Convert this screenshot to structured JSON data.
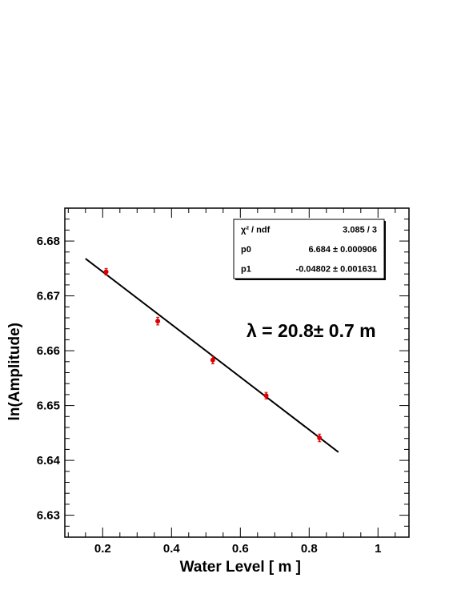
{
  "chart_data": {
    "type": "scatter",
    "xlabel": "Water Level [ m ]",
    "ylabel": "ln(Amplitude)",
    "xlim": [
      0.09,
      1.09
    ],
    "ylim": [
      6.626,
      6.686
    ],
    "x_ticks": [
      0.2,
      0.4,
      0.6,
      0.8,
      1.0
    ],
    "x_tick_labels": [
      "0.2",
      "0.4",
      "0.6",
      "0.8",
      "1"
    ],
    "y_ticks": [
      6.63,
      6.64,
      6.65,
      6.66,
      6.67,
      6.68
    ],
    "y_tick_labels": [
      "6.63",
      "6.64",
      "6.65",
      "6.66",
      "6.67",
      "6.68"
    ],
    "grid": false,
    "points": [
      {
        "x": 0.21,
        "y": 6.6744,
        "err": 0.0006
      },
      {
        "x": 0.36,
        "y": 6.6654,
        "err": 0.0007
      },
      {
        "x": 0.52,
        "y": 6.6583,
        "err": 0.0007
      },
      {
        "x": 0.675,
        "y": 6.6518,
        "err": 0.0006
      },
      {
        "x": 0.83,
        "y": 6.6441,
        "err": 0.0007
      }
    ],
    "fit": {
      "x_range": [
        0.15,
        0.885
      ],
      "p0": 6.684,
      "p1": -0.04802
    },
    "stats_box": {
      "rows": [
        {
          "label": "χ² / ndf",
          "value": "3.085 / 3"
        },
        {
          "label": "p0",
          "value": "6.684 ± 0.000906"
        },
        {
          "label": "p1",
          "value": "-0.04802 ± 0.001631"
        }
      ]
    },
    "annotation": "λ =  20.8± 0.7 m",
    "colors": {
      "points": "#e00000",
      "fit_line": "#000000",
      "axes": "#000000"
    }
  }
}
